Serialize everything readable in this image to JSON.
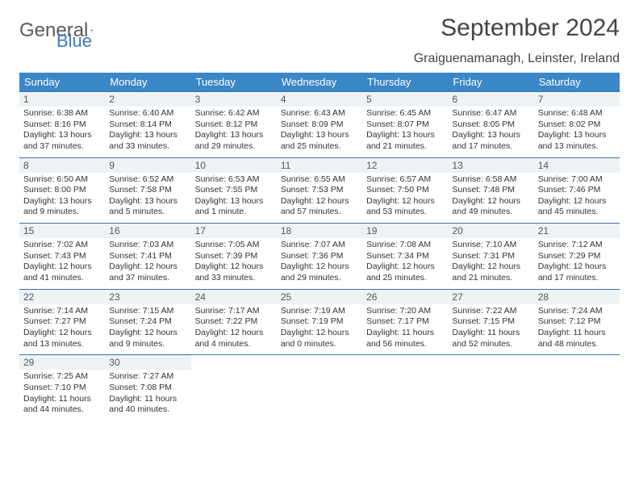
{
  "brand": {
    "word1": "General",
    "word2": "Blue"
  },
  "title": "September 2024",
  "location": "Graiguenamanagh, Leinster, Ireland",
  "colors": {
    "header_bg": "#3a87c7",
    "header_text": "#ffffff",
    "row_divider": "#3a6fa3",
    "daynum_bg": "#eef2f5",
    "brand_grey": "#595959",
    "brand_blue": "#3a7bbf",
    "text": "#333333"
  },
  "day_names": [
    "Sunday",
    "Monday",
    "Tuesday",
    "Wednesday",
    "Thursday",
    "Friday",
    "Saturday"
  ],
  "weeks": [
    [
      {
        "n": "1",
        "s": "Sunrise: 6:38 AM",
        "t": "Sunset: 8:16 PM",
        "d": "Daylight: 13 hours and 37 minutes."
      },
      {
        "n": "2",
        "s": "Sunrise: 6:40 AM",
        "t": "Sunset: 8:14 PM",
        "d": "Daylight: 13 hours and 33 minutes."
      },
      {
        "n": "3",
        "s": "Sunrise: 6:42 AM",
        "t": "Sunset: 8:12 PM",
        "d": "Daylight: 13 hours and 29 minutes."
      },
      {
        "n": "4",
        "s": "Sunrise: 6:43 AM",
        "t": "Sunset: 8:09 PM",
        "d": "Daylight: 13 hours and 25 minutes."
      },
      {
        "n": "5",
        "s": "Sunrise: 6:45 AM",
        "t": "Sunset: 8:07 PM",
        "d": "Daylight: 13 hours and 21 minutes."
      },
      {
        "n": "6",
        "s": "Sunrise: 6:47 AM",
        "t": "Sunset: 8:05 PM",
        "d": "Daylight: 13 hours and 17 minutes."
      },
      {
        "n": "7",
        "s": "Sunrise: 6:48 AM",
        "t": "Sunset: 8:02 PM",
        "d": "Daylight: 13 hours and 13 minutes."
      }
    ],
    [
      {
        "n": "8",
        "s": "Sunrise: 6:50 AM",
        "t": "Sunset: 8:00 PM",
        "d": "Daylight: 13 hours and 9 minutes."
      },
      {
        "n": "9",
        "s": "Sunrise: 6:52 AM",
        "t": "Sunset: 7:58 PM",
        "d": "Daylight: 13 hours and 5 minutes."
      },
      {
        "n": "10",
        "s": "Sunrise: 6:53 AM",
        "t": "Sunset: 7:55 PM",
        "d": "Daylight: 13 hours and 1 minute."
      },
      {
        "n": "11",
        "s": "Sunrise: 6:55 AM",
        "t": "Sunset: 7:53 PM",
        "d": "Daylight: 12 hours and 57 minutes."
      },
      {
        "n": "12",
        "s": "Sunrise: 6:57 AM",
        "t": "Sunset: 7:50 PM",
        "d": "Daylight: 12 hours and 53 minutes."
      },
      {
        "n": "13",
        "s": "Sunrise: 6:58 AM",
        "t": "Sunset: 7:48 PM",
        "d": "Daylight: 12 hours and 49 minutes."
      },
      {
        "n": "14",
        "s": "Sunrise: 7:00 AM",
        "t": "Sunset: 7:46 PM",
        "d": "Daylight: 12 hours and 45 minutes."
      }
    ],
    [
      {
        "n": "15",
        "s": "Sunrise: 7:02 AM",
        "t": "Sunset: 7:43 PM",
        "d": "Daylight: 12 hours and 41 minutes."
      },
      {
        "n": "16",
        "s": "Sunrise: 7:03 AM",
        "t": "Sunset: 7:41 PM",
        "d": "Daylight: 12 hours and 37 minutes."
      },
      {
        "n": "17",
        "s": "Sunrise: 7:05 AM",
        "t": "Sunset: 7:39 PM",
        "d": "Daylight: 12 hours and 33 minutes."
      },
      {
        "n": "18",
        "s": "Sunrise: 7:07 AM",
        "t": "Sunset: 7:36 PM",
        "d": "Daylight: 12 hours and 29 minutes."
      },
      {
        "n": "19",
        "s": "Sunrise: 7:08 AM",
        "t": "Sunset: 7:34 PM",
        "d": "Daylight: 12 hours and 25 minutes."
      },
      {
        "n": "20",
        "s": "Sunrise: 7:10 AM",
        "t": "Sunset: 7:31 PM",
        "d": "Daylight: 12 hours and 21 minutes."
      },
      {
        "n": "21",
        "s": "Sunrise: 7:12 AM",
        "t": "Sunset: 7:29 PM",
        "d": "Daylight: 12 hours and 17 minutes."
      }
    ],
    [
      {
        "n": "22",
        "s": "Sunrise: 7:14 AM",
        "t": "Sunset: 7:27 PM",
        "d": "Daylight: 12 hours and 13 minutes."
      },
      {
        "n": "23",
        "s": "Sunrise: 7:15 AM",
        "t": "Sunset: 7:24 PM",
        "d": "Daylight: 12 hours and 9 minutes."
      },
      {
        "n": "24",
        "s": "Sunrise: 7:17 AM",
        "t": "Sunset: 7:22 PM",
        "d": "Daylight: 12 hours and 4 minutes."
      },
      {
        "n": "25",
        "s": "Sunrise: 7:19 AM",
        "t": "Sunset: 7:19 PM",
        "d": "Daylight: 12 hours and 0 minutes."
      },
      {
        "n": "26",
        "s": "Sunrise: 7:20 AM",
        "t": "Sunset: 7:17 PM",
        "d": "Daylight: 11 hours and 56 minutes."
      },
      {
        "n": "27",
        "s": "Sunrise: 7:22 AM",
        "t": "Sunset: 7:15 PM",
        "d": "Daylight: 11 hours and 52 minutes."
      },
      {
        "n": "28",
        "s": "Sunrise: 7:24 AM",
        "t": "Sunset: 7:12 PM",
        "d": "Daylight: 11 hours and 48 minutes."
      }
    ],
    [
      {
        "n": "29",
        "s": "Sunrise: 7:25 AM",
        "t": "Sunset: 7:10 PM",
        "d": "Daylight: 11 hours and 44 minutes."
      },
      {
        "n": "30",
        "s": "Sunrise: 7:27 AM",
        "t": "Sunset: 7:08 PM",
        "d": "Daylight: 11 hours and 40 minutes."
      },
      {
        "empty": true
      },
      {
        "empty": true
      },
      {
        "empty": true
      },
      {
        "empty": true
      },
      {
        "empty": true
      }
    ]
  ]
}
